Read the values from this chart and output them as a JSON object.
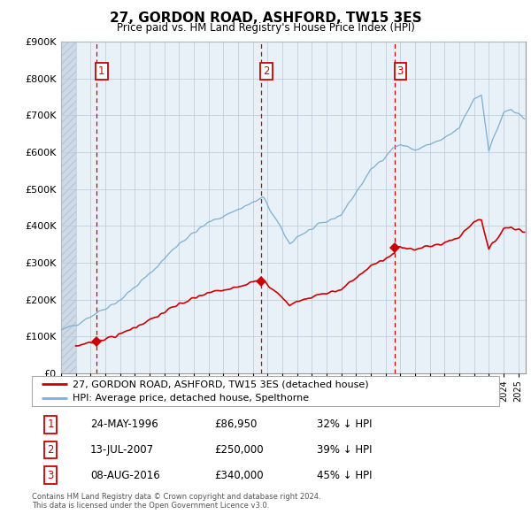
{
  "title": "27, GORDON ROAD, ASHFORD, TW15 3ES",
  "subtitle": "Price paid vs. HM Land Registry's House Price Index (HPI)",
  "hpi_label": "HPI: Average price, detached house, Spelthorne",
  "price_label": "27, GORDON ROAD, ASHFORD, TW15 3ES (detached house)",
  "transactions": [
    {
      "num": "1",
      "date": "24-MAY-1996",
      "year": 1996.38,
      "price": 86950,
      "pct": "32% ↓ HPI"
    },
    {
      "num": "2",
      "date": "13-JUL-2007",
      "year": 2007.54,
      "price": 250000,
      "pct": "39% ↓ HPI"
    },
    {
      "num": "3",
      "date": "08-AUG-2016",
      "year": 2016.62,
      "price": 340000,
      "pct": "45% ↓ HPI"
    }
  ],
  "footer": "Contains HM Land Registry data © Crown copyright and database right 2024.\nThis data is licensed under the Open Government Licence v3.0.",
  "price_color": "#cc0000",
  "hpi_color": "#7ab0d4",
  "chart_bg": "#e8f0f8",
  "vline_color": "#cc0000",
  "ylim": [
    0,
    900000
  ],
  "yticks": [
    0,
    100000,
    200000,
    300000,
    400000,
    500000,
    600000,
    700000,
    800000,
    900000
  ],
  "xlim_start": 1994.0,
  "xlim_end": 2025.5,
  "hatch_end": 1995.0
}
